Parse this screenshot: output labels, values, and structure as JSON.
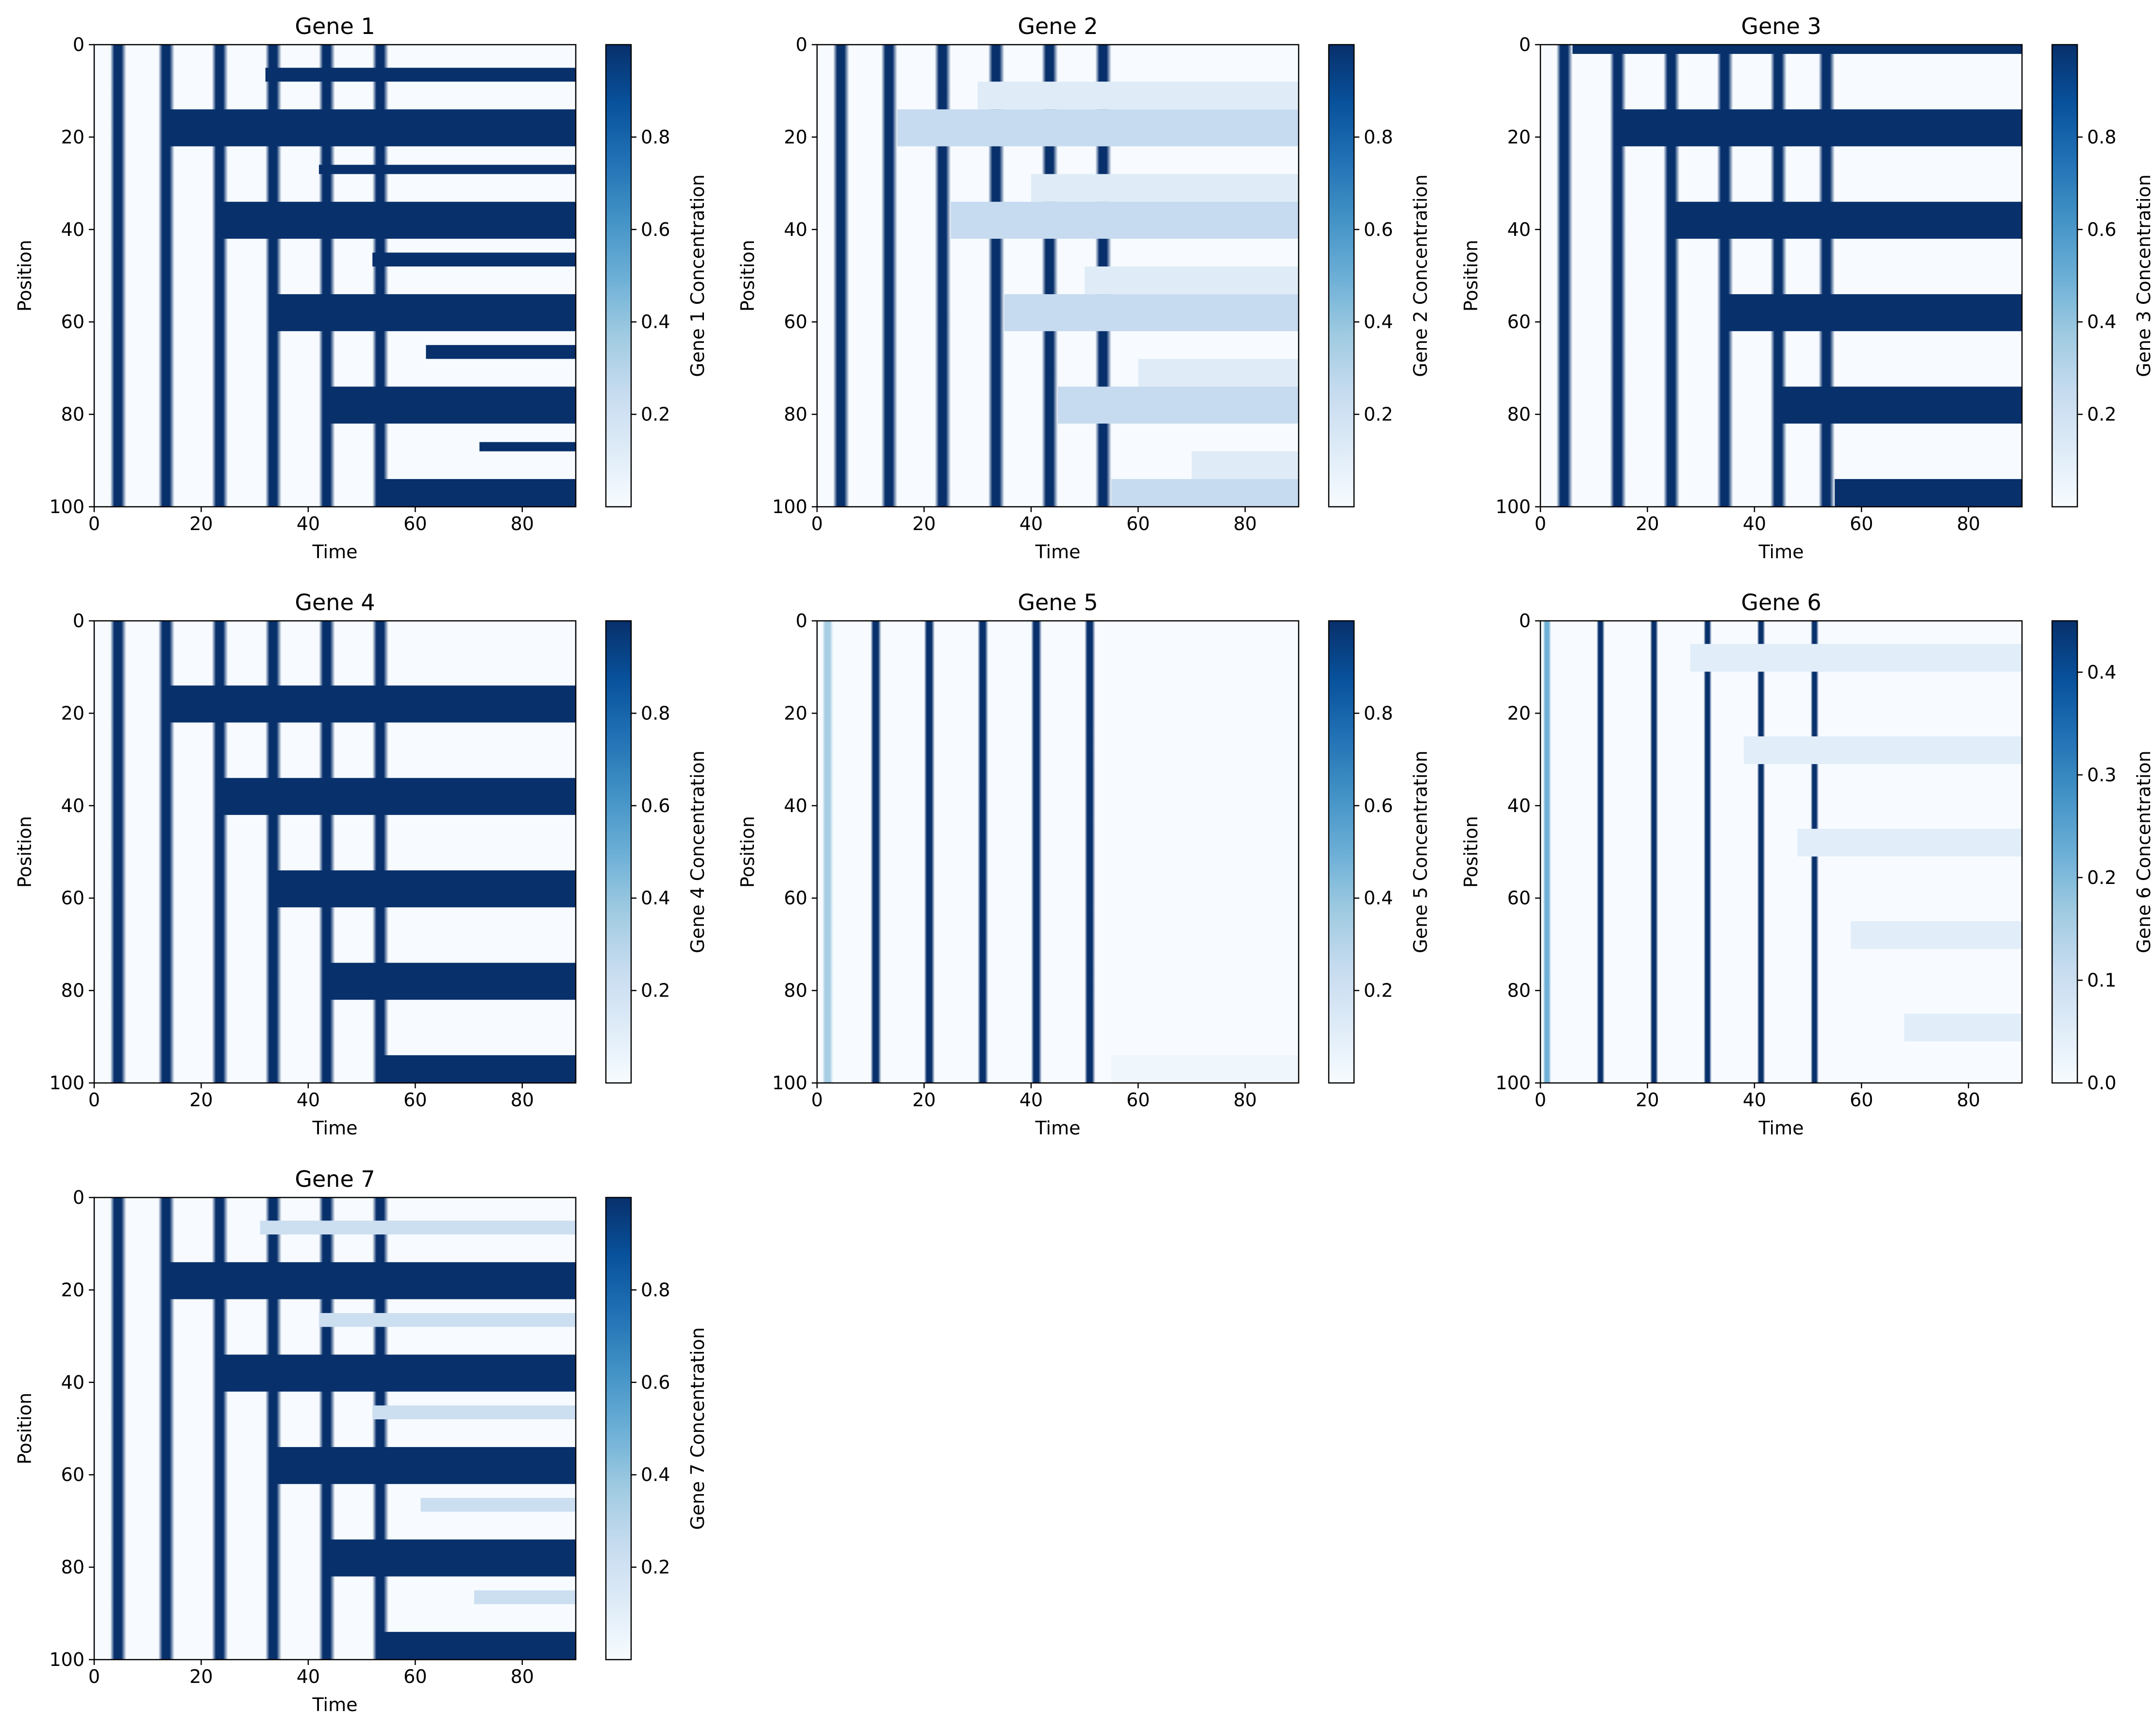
{
  "colors": {
    "colormap": [
      "#f7fbff",
      "#deebf7",
      "#c6dbef",
      "#9ecae1",
      "#6baed6",
      "#4292c6",
      "#2171b5",
      "#08519c",
      "#08306b"
    ]
  },
  "chart_data": [
    {
      "type": "heatmap",
      "title": "Gene 1",
      "xlabel": "Time",
      "ylabel": "Position",
      "colorbar_label": "Gene 1 Concentration",
      "xlim": [
        0,
        90
      ],
      "ylim": [
        100,
        0
      ],
      "xticks": [
        0,
        20,
        40,
        60,
        80
      ],
      "yticks": [
        0,
        20,
        40,
        60,
        80,
        100
      ],
      "cbar_range": [
        0,
        1
      ],
      "cbar_ticks": [
        "0.2",
        "0.4",
        "0.6",
        "0.8"
      ],
      "stripes": [
        {
          "start_time": 3,
          "value": 1.0,
          "width": 3
        },
        {
          "start_time": 12,
          "value": 1.0,
          "width": 3
        },
        {
          "start_time": 22,
          "value": 1.0,
          "width": 3
        },
        {
          "start_time": 32,
          "value": 1.0,
          "width": 3
        },
        {
          "start_time": 42,
          "value": 1.0,
          "width": 3
        },
        {
          "start_time": 52,
          "value": 1.0,
          "width": 3
        }
      ],
      "bands": [
        {
          "y0": 14,
          "y1": 22,
          "start_time": 13,
          "value": 1.0
        },
        {
          "y0": 34,
          "y1": 42,
          "start_time": 23,
          "value": 1.0
        },
        {
          "y0": 54,
          "y1": 62,
          "start_time": 33,
          "value": 1.0
        },
        {
          "y0": 74,
          "y1": 82,
          "start_time": 43,
          "value": 1.0
        },
        {
          "y0": 94,
          "y1": 100,
          "start_time": 53,
          "value": 1.0
        },
        {
          "y0": 5,
          "y1": 8,
          "start_time": 32,
          "value": 1.0
        },
        {
          "y0": 26,
          "y1": 28,
          "start_time": 42,
          "value": 1.0
        },
        {
          "y0": 45,
          "y1": 48,
          "start_time": 52,
          "value": 1.0
        },
        {
          "y0": 65,
          "y1": 68,
          "start_time": 62,
          "value": 1.0
        },
        {
          "y0": 86,
          "y1": 88,
          "start_time": 72,
          "value": 1.0
        }
      ]
    },
    {
      "type": "heatmap",
      "title": "Gene 2",
      "xlabel": "Time",
      "ylabel": "Position",
      "colorbar_label": "Gene 2 Concentration",
      "xlim": [
        0,
        90
      ],
      "ylim": [
        100,
        0
      ],
      "xticks": [
        0,
        20,
        40,
        60,
        80
      ],
      "yticks": [
        0,
        20,
        40,
        60,
        80,
        100
      ],
      "cbar_range": [
        0,
        1
      ],
      "cbar_ticks": [
        "0.2",
        "0.4",
        "0.6",
        "0.8"
      ],
      "stripes": [
        {
          "start_time": 3,
          "value": 1.0,
          "width": 3
        },
        {
          "start_time": 12,
          "value": 1.0,
          "width": 3
        },
        {
          "start_time": 22,
          "value": 1.0,
          "width": 3
        },
        {
          "start_time": 32,
          "value": 1.0,
          "width": 3
        },
        {
          "start_time": 42,
          "value": 1.0,
          "width": 3
        },
        {
          "start_time": 52,
          "value": 1.0,
          "width": 3
        }
      ],
      "bands": [
        {
          "y0": 14,
          "y1": 22,
          "start_time": 15,
          "value": 0.25
        },
        {
          "y0": 34,
          "y1": 42,
          "start_time": 25,
          "value": 0.25
        },
        {
          "y0": 54,
          "y1": 62,
          "start_time": 35,
          "value": 0.25
        },
        {
          "y0": 74,
          "y1": 82,
          "start_time": 45,
          "value": 0.25
        },
        {
          "y0": 94,
          "y1": 100,
          "start_time": 55,
          "value": 0.25
        },
        {
          "y0": 8,
          "y1": 14,
          "start_time": 30,
          "value": 0.12
        },
        {
          "y0": 28,
          "y1": 34,
          "start_time": 40,
          "value": 0.12
        },
        {
          "y0": 48,
          "y1": 54,
          "start_time": 50,
          "value": 0.12
        },
        {
          "y0": 68,
          "y1": 74,
          "start_time": 60,
          "value": 0.12
        },
        {
          "y0": 88,
          "y1": 94,
          "start_time": 70,
          "value": 0.12
        }
      ]
    },
    {
      "type": "heatmap",
      "title": "Gene 3",
      "xlabel": "Time",
      "ylabel": "Position",
      "colorbar_label": "Gene 3 Concentration",
      "xlim": [
        0,
        90
      ],
      "ylim": [
        100,
        0
      ],
      "xticks": [
        0,
        20,
        40,
        60,
        80
      ],
      "yticks": [
        0,
        20,
        40,
        60,
        80,
        100
      ],
      "cbar_range": [
        0,
        1
      ],
      "cbar_ticks": [
        "0.2",
        "0.4",
        "0.6",
        "0.8"
      ],
      "stripes": [
        {
          "start_time": 3,
          "value": 1.0,
          "width": 3
        },
        {
          "start_time": 13,
          "value": 1.0,
          "width": 3
        },
        {
          "start_time": 23,
          "value": 1.0,
          "width": 3
        },
        {
          "start_time": 33,
          "value": 1.0,
          "width": 3
        },
        {
          "start_time": 43,
          "value": 1.0,
          "width": 3
        },
        {
          "start_time": 52,
          "value": 1.0,
          "width": 3
        }
      ],
      "bands": [
        {
          "y0": 0,
          "y1": 2,
          "start_time": 6,
          "value": 1.0
        },
        {
          "y0": 14,
          "y1": 22,
          "start_time": 15,
          "value": 1.0
        },
        {
          "y0": 34,
          "y1": 42,
          "start_time": 25,
          "value": 1.0
        },
        {
          "y0": 54,
          "y1": 62,
          "start_time": 35,
          "value": 1.0
        },
        {
          "y0": 74,
          "y1": 82,
          "start_time": 45,
          "value": 1.0
        },
        {
          "y0": 94,
          "y1": 100,
          "start_time": 55,
          "value": 1.0
        }
      ]
    },
    {
      "type": "heatmap",
      "title": "Gene 4",
      "xlabel": "Time",
      "ylabel": "Position",
      "colorbar_label": "Gene 4 Concentration",
      "xlim": [
        0,
        90
      ],
      "ylim": [
        100,
        0
      ],
      "xticks": [
        0,
        20,
        40,
        60,
        80
      ],
      "yticks": [
        0,
        20,
        40,
        60,
        80,
        100
      ],
      "cbar_range": [
        0,
        1
      ],
      "cbar_ticks": [
        "0.2",
        "0.4",
        "0.6",
        "0.8"
      ],
      "stripes": [
        {
          "start_time": 3,
          "value": 1.0,
          "width": 3
        },
        {
          "start_time": 12,
          "value": 1.0,
          "width": 3
        },
        {
          "start_time": 22,
          "value": 1.0,
          "width": 3
        },
        {
          "start_time": 32,
          "value": 1.0,
          "width": 3
        },
        {
          "start_time": 42,
          "value": 1.0,
          "width": 3
        },
        {
          "start_time": 52,
          "value": 1.0,
          "width": 3
        }
      ],
      "bands": [
        {
          "y0": 14,
          "y1": 22,
          "start_time": 14,
          "value": 1.0
        },
        {
          "y0": 34,
          "y1": 42,
          "start_time": 24,
          "value": 1.0
        },
        {
          "y0": 54,
          "y1": 62,
          "start_time": 34,
          "value": 1.0
        },
        {
          "y0": 74,
          "y1": 82,
          "start_time": 44,
          "value": 1.0
        },
        {
          "y0": 94,
          "y1": 100,
          "start_time": 54,
          "value": 1.0
        }
      ]
    },
    {
      "type": "heatmap",
      "title": "Gene 5",
      "xlabel": "Time",
      "ylabel": "Position",
      "colorbar_label": "Gene 5 Concentration",
      "xlim": [
        0,
        90
      ],
      "ylim": [
        100,
        0
      ],
      "xticks": [
        0,
        20,
        40,
        60,
        80
      ],
      "yticks": [
        0,
        20,
        40,
        60,
        80,
        100
      ],
      "cbar_range": [
        0,
        1
      ],
      "cbar_ticks": [
        "0.2",
        "0.4",
        "0.6",
        "0.8"
      ],
      "stripes": [
        {
          "start_time": 1,
          "value": 0.35,
          "width": 2
        },
        {
          "start_time": 10,
          "value": 1.0,
          "width": 2
        },
        {
          "start_time": 20,
          "value": 1.0,
          "width": 2
        },
        {
          "start_time": 30,
          "value": 1.0,
          "width": 2
        },
        {
          "start_time": 40,
          "value": 1.0,
          "width": 2
        },
        {
          "start_time": 50,
          "value": 1.0,
          "width": 2
        }
      ],
      "bands": [
        {
          "y0": 94,
          "y1": 100,
          "start_time": 55,
          "value": 0.04
        }
      ]
    },
    {
      "type": "heatmap",
      "title": "Gene 6",
      "xlabel": "Time",
      "ylabel": "Position",
      "colorbar_label": "Gene 6 Concentration",
      "xlim": [
        0,
        90
      ],
      "ylim": [
        100,
        0
      ],
      "xticks": [
        0,
        20,
        40,
        60,
        80
      ],
      "yticks": [
        0,
        20,
        40,
        60,
        80,
        100
      ],
      "cbar_range": [
        0,
        0.45
      ],
      "cbar_ticks": [
        "0.0",
        "0.1",
        "0.2",
        "0.3",
        "0.4"
      ],
      "stripes": [
        {
          "start_time": 0.5,
          "value": 0.22,
          "width": 1.5
        },
        {
          "start_time": 10.5,
          "value": 0.45,
          "width": 1.5
        },
        {
          "start_time": 20.5,
          "value": 0.45,
          "width": 1.5
        },
        {
          "start_time": 30.5,
          "value": 0.45,
          "width": 1.5
        },
        {
          "start_time": 40.5,
          "value": 0.45,
          "width": 1.5
        },
        {
          "start_time": 50.5,
          "value": 0.45,
          "width": 1.5
        }
      ],
      "bands": [
        {
          "y0": 5,
          "y1": 11,
          "start_time": 28,
          "value": 0.05
        },
        {
          "y0": 25,
          "y1": 31,
          "start_time": 38,
          "value": 0.05
        },
        {
          "y0": 45,
          "y1": 51,
          "start_time": 48,
          "value": 0.05
        },
        {
          "y0": 65,
          "y1": 71,
          "start_time": 58,
          "value": 0.05
        },
        {
          "y0": 85,
          "y1": 91,
          "start_time": 68,
          "value": 0.05
        }
      ]
    },
    {
      "type": "heatmap",
      "title": "Gene 7",
      "xlabel": "Time",
      "ylabel": "Position",
      "colorbar_label": "Gene 7 Concentration",
      "xlim": [
        0,
        90
      ],
      "ylim": [
        100,
        0
      ],
      "xticks": [
        0,
        20,
        40,
        60,
        80
      ],
      "yticks": [
        0,
        20,
        40,
        60,
        80,
        100
      ],
      "cbar_range": [
        0,
        1
      ],
      "cbar_ticks": [
        "0.2",
        "0.4",
        "0.6",
        "0.8"
      ],
      "stripes": [
        {
          "start_time": 3,
          "value": 1.0,
          "width": 3
        },
        {
          "start_time": 12,
          "value": 1.0,
          "width": 3
        },
        {
          "start_time": 22,
          "value": 1.0,
          "width": 3
        },
        {
          "start_time": 32,
          "value": 1.0,
          "width": 3
        },
        {
          "start_time": 42,
          "value": 1.0,
          "width": 3
        },
        {
          "start_time": 52,
          "value": 1.0,
          "width": 3
        }
      ],
      "bands": [
        {
          "y0": 14,
          "y1": 22,
          "start_time": 14,
          "value": 1.0
        },
        {
          "y0": 34,
          "y1": 42,
          "start_time": 24,
          "value": 1.0
        },
        {
          "y0": 54,
          "y1": 62,
          "start_time": 34,
          "value": 1.0
        },
        {
          "y0": 74,
          "y1": 82,
          "start_time": 44,
          "value": 1.0
        },
        {
          "y0": 94,
          "y1": 100,
          "start_time": 54,
          "value": 1.0
        },
        {
          "y0": 5,
          "y1": 8,
          "start_time": 31,
          "value": 0.22
        },
        {
          "y0": 25,
          "y1": 28,
          "start_time": 42,
          "value": 0.22
        },
        {
          "y0": 45,
          "y1": 48,
          "start_time": 52,
          "value": 0.22
        },
        {
          "y0": 65,
          "y1": 68,
          "start_time": 61,
          "value": 0.22
        },
        {
          "y0": 85,
          "y1": 88,
          "start_time": 71,
          "value": 0.22
        }
      ]
    }
  ]
}
